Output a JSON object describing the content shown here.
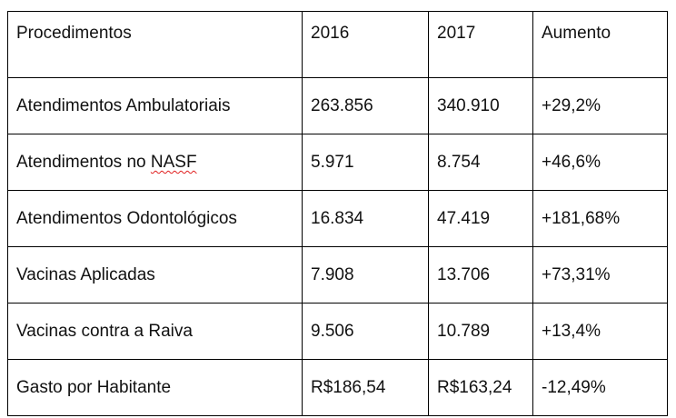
{
  "table": {
    "headers": [
      "Procedimentos",
      "2016",
      "2017",
      "Aumento"
    ],
    "rows": [
      {
        "procedimento": "Atendimentos Ambulatoriais",
        "y2016": "263.856",
        "y2017": "340.910",
        "aumento": "+29,2%"
      },
      {
        "procedimento_prefix": "Atendimentos no ",
        "procedimento_marked": "NASF",
        "y2016": "5.971",
        "y2017": "8.754",
        "aumento": "+46,6%"
      },
      {
        "procedimento": "Atendimentos Odontológicos",
        "y2016": "16.834",
        "y2017": "47.419",
        "aumento": "+181,68%"
      },
      {
        "procedimento": "Vacinas Aplicadas",
        "y2016": "7.908",
        "y2017": "13.706",
        "aumento": "+73,31%"
      },
      {
        "procedimento": "Vacinas contra a Raiva",
        "y2016": "9.506",
        "y2017": "10.789",
        "aumento": "+13,4%"
      },
      {
        "procedimento": "Gasto por Habitante",
        "y2016": "R$186,54",
        "y2017": "R$163,24",
        "aumento": "-12,49%"
      }
    ]
  }
}
